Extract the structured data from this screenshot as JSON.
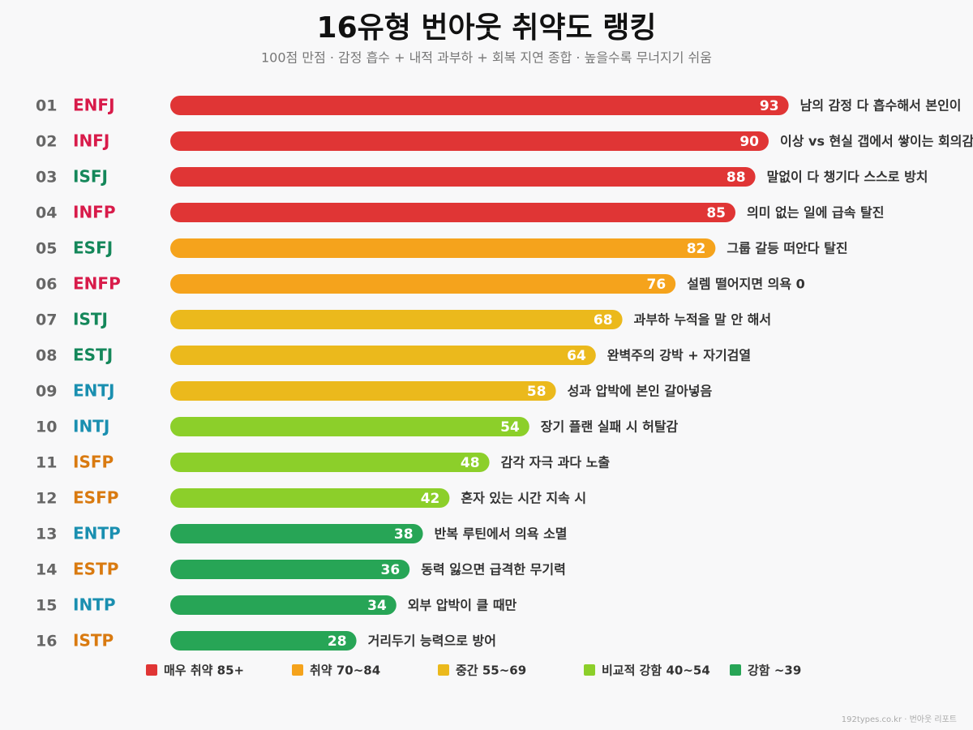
{
  "chart_data": {
    "type": "bar",
    "orientation": "horizontal",
    "title": "16유형 번아웃 취약도 랭킹",
    "subtitle": "100점 만점 · 감정 흡수 + 내적 과부하 + 회복 지연 종합 · 높을수록 무너지기 쉬움",
    "xlim": [
      0,
      100
    ],
    "ranks": [
      "01",
      "02",
      "03",
      "04",
      "05",
      "06",
      "07",
      "08",
      "09",
      "10",
      "11",
      "12",
      "13",
      "14",
      "15",
      "16"
    ],
    "categories": [
      "ENFJ",
      "INFJ",
      "ISFJ",
      "INFP",
      "ESFJ",
      "ENFP",
      "ISTJ",
      "ESTJ",
      "ENTJ",
      "INTJ",
      "ISFP",
      "ESFP",
      "ENTP",
      "ESTP",
      "INTP",
      "ISTP"
    ],
    "category_colors": [
      "#d81b4a",
      "#d81b4a",
      "#14875a",
      "#d81b4a",
      "#14875a",
      "#d81b4a",
      "#14875a",
      "#14875a",
      "#1a8fb0",
      "#1a8fb0",
      "#d97a10",
      "#d97a10",
      "#1a8fb0",
      "#d97a10",
      "#1a8fb0",
      "#d97a10"
    ],
    "values": [
      93,
      90,
      88,
      85,
      82,
      76,
      68,
      64,
      58,
      54,
      48,
      42,
      38,
      36,
      34,
      28
    ],
    "colors": [
      "#e03535",
      "#e03535",
      "#e03535",
      "#e03535",
      "#f5a31c",
      "#f5a31c",
      "#ebb91c",
      "#ebb91c",
      "#ebb91c",
      "#8ccf2a",
      "#8ccf2a",
      "#8ccf2a",
      "#27a556",
      "#27a556",
      "#27a556",
      "#27a556"
    ],
    "annotations": [
      "남의 감정 다 흡수해서 본인이",
      "이상 vs 현실 갭에서 쌓이는 회의감",
      "말없이 다 챙기다 스스로 방치",
      "의미 없는 일에 급속 탈진",
      "그룹 갈등 떠안다 탈진",
      "설렘 떨어지면 의욕 0",
      "과부하 누적을 말 안 해서",
      "완벽주의 강박 + 자기검열",
      "성과 압박에 본인 갈아넣음",
      "장기 플랜 실패 시 허탈감",
      "감각 자극 과다 노출",
      "혼자 있는 시간 지속 시",
      "반복 루틴에서 의욕 소멸",
      "동력 잃으면 급격한 무기력",
      "외부 압박이 클 때만",
      "거리두기 능력으로 방어"
    ],
    "legend": [
      {
        "name": "매우 취약 85+",
        "color": "#e03535"
      },
      {
        "name": "취약 70~84",
        "color": "#f5a31c"
      },
      {
        "name": "중간 55~69",
        "color": "#ebb91c"
      },
      {
        "name": "비교적 강함 40~54",
        "color": "#8ccf2a"
      },
      {
        "name": "강함 ~39",
        "color": "#27a556"
      }
    ],
    "footer": "192types.co.kr · 번아웃 리포트"
  }
}
